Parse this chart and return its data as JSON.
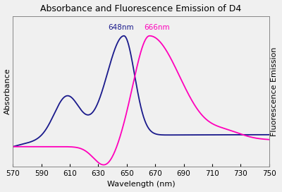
{
  "title": "Absorbance and Fluorescence Emission of D4",
  "xlabel": "Wavelength (nm)",
  "ylabel_left": "Absorbance",
  "ylabel_right": "Fluorescence Emission",
  "xmin": 570,
  "xmax": 750,
  "xticks": [
    570,
    590,
    610,
    630,
    650,
    670,
    690,
    710,
    730,
    750
  ],
  "abs_peak_wl": 648,
  "abs_peak_label": "648nm",
  "fluo_peak_wl": 666,
  "fluo_peak_label": "666nm",
  "abs_color": "#1a1a8c",
  "fluo_color": "#ff00bb",
  "background_color": "#f0f0f0",
  "plot_bg_color": "#f0f0f0",
  "title_fontsize": 9,
  "axis_label_fontsize": 8,
  "annotation_fontsize": 7.5
}
